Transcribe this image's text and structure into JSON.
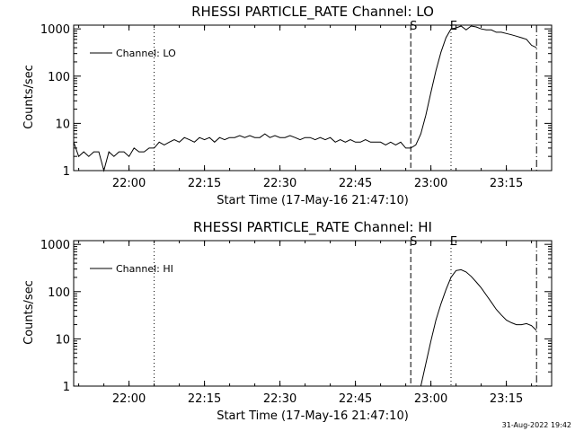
{
  "footer": {
    "timestamp": "31-Aug-2022 19:42"
  },
  "chart_data": [
    {
      "type": "line",
      "title": "RHESSI PARTICLE_RATE Channel: LO",
      "xlabel": "Start Time (17-May-16 21:47:10)",
      "ylabel": "Counts/sec",
      "yscale": "log",
      "ylim": [
        1,
        1200
      ],
      "xlim": [
        "21:49",
        "23:24"
      ],
      "xticks": [
        "22:00",
        "22:15",
        "22:30",
        "22:45",
        "23:00",
        "23:15"
      ],
      "yticks": [
        "1",
        "10",
        "100",
        "1000"
      ],
      "legend": {
        "position": "top-left",
        "entries": [
          "Channel: LO"
        ]
      },
      "markers": [
        {
          "time": "22:05",
          "style": "dotted",
          "label": ""
        },
        {
          "time": "22:56",
          "style": "dashed",
          "label": "S"
        },
        {
          "time": "23:04",
          "style": "dotted",
          "label": "E"
        },
        {
          "time": "23:21",
          "style": "dash-dot",
          "label": ""
        }
      ],
      "series": [
        {
          "name": "Channel: LO",
          "x": [
            "21:49",
            "21:50",
            "21:51",
            "21:52",
            "21:53",
            "21:54",
            "21:55",
            "21:56",
            "21:57",
            "21:58",
            "21:59",
            "22:00",
            "22:01",
            "22:02",
            "22:03",
            "22:04",
            "22:05",
            "22:06",
            "22:07",
            "22:08",
            "22:09",
            "22:10",
            "22:11",
            "22:12",
            "22:13",
            "22:14",
            "22:15",
            "22:16",
            "22:17",
            "22:18",
            "22:19",
            "22:20",
            "22:21",
            "22:22",
            "22:23",
            "22:24",
            "22:25",
            "22:26",
            "22:27",
            "22:28",
            "22:29",
            "22:30",
            "22:31",
            "22:32",
            "22:33",
            "22:34",
            "22:35",
            "22:36",
            "22:37",
            "22:38",
            "22:39",
            "22:40",
            "22:41",
            "22:42",
            "22:43",
            "22:44",
            "22:45",
            "22:46",
            "22:47",
            "22:48",
            "22:49",
            "22:50",
            "22:51",
            "22:52",
            "22:53",
            "22:54",
            "22:55",
            "22:56",
            "22:57",
            "22:58",
            "22:59",
            "23:00",
            "23:01",
            "23:02",
            "23:03",
            "23:04",
            "23:05",
            "23:06",
            "23:07",
            "23:08",
            "23:09",
            "23:10",
            "23:11",
            "23:12",
            "23:13",
            "23:14",
            "23:15",
            "23:16",
            "23:17",
            "23:18",
            "23:19",
            "23:20",
            "23:21"
          ],
          "y": [
            4,
            2,
            2.5,
            2,
            2.5,
            2.5,
            0.8,
            2.5,
            2,
            2.5,
            2.5,
            2,
            3,
            2.5,
            2.5,
            3,
            3,
            4,
            3.5,
            4,
            4.5,
            4,
            5,
            4.5,
            4,
            5,
            4.5,
            5,
            4,
            5,
            4.5,
            5,
            5,
            5.5,
            5,
            5.5,
            5,
            5,
            6,
            5,
            5.5,
            5,
            5,
            5.5,
            5,
            4.5,
            5,
            5,
            4.5,
            5,
            4.5,
            5,
            4,
            4.5,
            4,
            4.5,
            4,
            4,
            4.5,
            4,
            4,
            4,
            3.5,
            4,
            3.5,
            4,
            3,
            3,
            3.5,
            6,
            15,
            45,
            130,
            320,
            650,
            1000,
            1050,
            1150,
            950,
            1150,
            1100,
            1000,
            950,
            950,
            850,
            850,
            800,
            750,
            700,
            650,
            600,
            450,
            400
          ]
        }
      ]
    },
    {
      "type": "line",
      "title": "RHESSI PARTICLE_RATE Channel: HI",
      "xlabel": "Start Time (17-May-16 21:47:10)",
      "ylabel": "Counts/sec",
      "yscale": "log",
      "ylim": [
        1,
        1200
      ],
      "xlim": [
        "21:49",
        "23:24"
      ],
      "xticks": [
        "22:00",
        "22:15",
        "22:30",
        "22:45",
        "23:00",
        "23:15"
      ],
      "yticks": [
        "1",
        "10",
        "100",
        "1000"
      ],
      "legend": {
        "position": "top-left",
        "entries": [
          "Channel: HI"
        ]
      },
      "markers": [
        {
          "time": "22:05",
          "style": "dotted",
          "label": ""
        },
        {
          "time": "22:56",
          "style": "dashed",
          "label": "S"
        },
        {
          "time": "23:04",
          "style": "dotted",
          "label": "E"
        },
        {
          "time": "23:21",
          "style": "dash-dot",
          "label": ""
        }
      ],
      "series": [
        {
          "name": "Channel: HI",
          "x": [
            "22:58",
            "22:59",
            "23:00",
            "23:01",
            "23:02",
            "23:03",
            "23:04",
            "23:05",
            "23:06",
            "23:07",
            "23:08",
            "23:09",
            "23:10",
            "23:11",
            "23:12",
            "23:13",
            "23:14",
            "23:15",
            "23:16",
            "23:17",
            "23:18",
            "23:19",
            "23:20",
            "23:21"
          ],
          "y": [
            0.9,
            3,
            9,
            25,
            55,
            110,
            200,
            280,
            290,
            260,
            210,
            160,
            120,
            85,
            60,
            42,
            32,
            25,
            22,
            20,
            20,
            21,
            19,
            15
          ]
        }
      ]
    }
  ]
}
